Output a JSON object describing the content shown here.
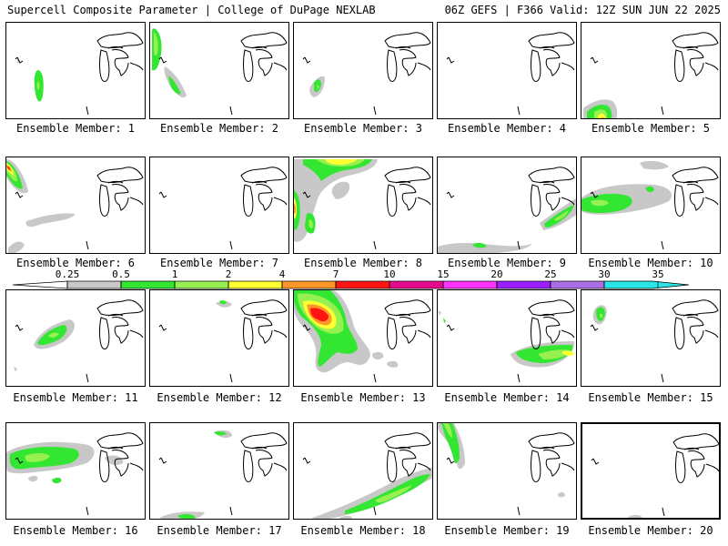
{
  "header": {
    "left": "Supercell Composite Parameter | College of DuPage NEXLAB",
    "right": "06Z GEFS | F366 Valid: 12Z SUN JUN 22 2025"
  },
  "colors": {
    "bins": [
      "#c8c8c8",
      "#32e632",
      "#96f050",
      "#ffff32",
      "#ff9628",
      "#ff1414",
      "#e60a8c",
      "#ff32ff",
      "#9b1eff",
      "#aa6ee6",
      "#28e6e6"
    ]
  },
  "colorbar": {
    "ticks": [
      "0.25",
      "0.5",
      "1",
      "2",
      "4",
      "7",
      "10",
      "15",
      "20",
      "25",
      "30",
      "35"
    ]
  },
  "members": [
    {
      "label": "Ensemble Member: 1"
    },
    {
      "label": "Ensemble Member: 2"
    },
    {
      "label": "Ensemble Member: 3"
    },
    {
      "label": "Ensemble Member: 4"
    },
    {
      "label": "Ensemble Member: 5"
    },
    {
      "label": "Ensemble Member: 6"
    },
    {
      "label": "Ensemble Member: 7"
    },
    {
      "label": "Ensemble Member: 8"
    },
    {
      "label": "Ensemble Member: 9"
    },
    {
      "label": "Ensemble Member: 10"
    },
    {
      "label": "Ensemble Member: 11"
    },
    {
      "label": "Ensemble Member: 12"
    },
    {
      "label": "Ensemble Member: 13"
    },
    {
      "label": "Ensemble Member: 14"
    },
    {
      "label": "Ensemble Member: 15"
    },
    {
      "label": "Ensemble Member: 16"
    },
    {
      "label": "Ensemble Member: 17"
    },
    {
      "label": "Ensemble Member: 18"
    },
    {
      "label": "Ensemble Member: 19"
    },
    {
      "label": "Ensemble Member: 20"
    }
  ]
}
